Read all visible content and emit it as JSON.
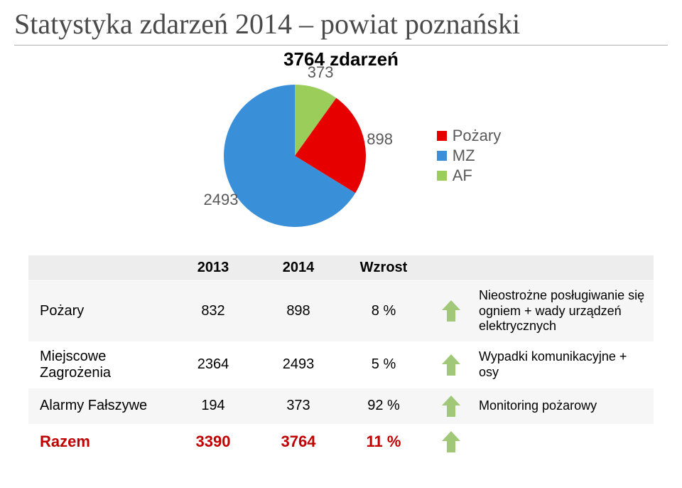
{
  "title": "Statystyka zdarzeń 2014 – powiat poznański",
  "subtitle": "3764 zdarzeń",
  "pie": {
    "type": "pie",
    "total": 3764,
    "slices": [
      {
        "label": "Pożary",
        "value": 898,
        "color": "#e60000"
      },
      {
        "label": "MZ",
        "value": 2493,
        "color": "#3a8fd9"
      },
      {
        "label": "AF",
        "value": 373,
        "color": "#9acd5a"
      }
    ],
    "label_fontsize": 22,
    "label_color": "#595959",
    "radius": 100
  },
  "legend_items": [
    {
      "label": "Pożary",
      "color": "#e60000"
    },
    {
      "label": "MZ",
      "color": "#3a8fd9"
    },
    {
      "label": "AF",
      "color": "#9acd5a"
    }
  ],
  "table": {
    "columns": [
      "",
      "2013",
      "2014",
      "Wzrost",
      "",
      ""
    ],
    "rows": [
      {
        "name": "Pożary",
        "y2013": "832",
        "y2014": "898",
        "wzrost": "8 %",
        "arrow": "up",
        "note": "Nieostrożne posługiwanie się ogniem + wady urządzeń elektrycznych"
      },
      {
        "name": "Miejscowe Zagrożenia",
        "y2013": "2364",
        "y2014": "2493",
        "wzrost": "5 %",
        "arrow": "up",
        "note": "Wypadki komunikacyjne + osy"
      },
      {
        "name": "Alarmy Fałszywe",
        "y2013": "194",
        "y2014": "373",
        "wzrost": "92 %",
        "arrow": "up",
        "note": "Monitoring pożarowy"
      }
    ],
    "total_row": {
      "name": "Razem",
      "y2013": "3390",
      "y2014": "3764",
      "wzrost": "11 %",
      "arrow": "up"
    }
  },
  "arrow_color": "#a0c878",
  "colors": {
    "background": "#ffffff",
    "header_bg": "#ededed",
    "row_alt_bg": "#f6f6f6",
    "total_text": "#c00000",
    "title_text": "#4a4a4a",
    "label_text": "#595959"
  },
  "typography": {
    "title_fontsize": 40,
    "subtitle_fontsize": 26,
    "table_fontsize": 20,
    "note_fontsize": 18
  }
}
